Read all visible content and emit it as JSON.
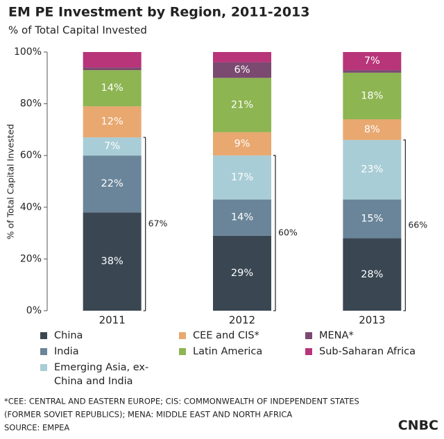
{
  "chart_data": {
    "type": "stacked_bar",
    "title": "EM PE Investment by Region, 2011-2013",
    "subtitle": "% of Total Capital Invested",
    "y_label": "% of Total Capital Invested",
    "categories": [
      "2011",
      "2012",
      "2013"
    ],
    "series": [
      {
        "name": "China",
        "color": "#3a4753",
        "values": [
          38,
          29,
          28
        ],
        "value_labels": [
          "38%",
          "29%",
          "28%"
        ]
      },
      {
        "name": "India",
        "color": "#6a8599",
        "values": [
          22,
          14,
          15
        ],
        "value_labels": [
          "22%",
          "14%",
          "15%"
        ]
      },
      {
        "name": "Emerging Asia, ex-China and India",
        "color": "#a9cdd6",
        "values": [
          7,
          17,
          23
        ],
        "value_labels": [
          "7%",
          "17%",
          "23%"
        ]
      },
      {
        "name": "CEE and CIS*",
        "color": "#e8a870",
        "values": [
          12,
          9,
          8
        ],
        "value_labels": [
          "12%",
          "9%",
          "8%"
        ]
      },
      {
        "name": "Latin America",
        "color": "#8db552",
        "values": [
          14,
          21,
          18
        ],
        "value_labels": [
          "14%",
          "21%",
          "18%"
        ]
      },
      {
        "name": "MENA*",
        "color": "#7a4a70",
        "values": [
          1,
          6,
          1
        ],
        "value_labels": [
          null,
          "6%",
          null
        ]
      },
      {
        "name": "Sub-Saharan Africa",
        "color": "#b8357a",
        "values": [
          6,
          4,
          7
        ],
        "value_labels": [
          null,
          null,
          "7%"
        ]
      }
    ],
    "brackets": [
      {
        "value": 67,
        "label": "67%"
      },
      {
        "value": 60,
        "label": "60%"
      },
      {
        "value": 66,
        "label": "66%"
      }
    ],
    "ylim": [
      0,
      100
    ],
    "yticks": [
      {
        "value": 0,
        "label": "0%"
      },
      {
        "value": 20,
        "label": "20%"
      },
      {
        "value": 40,
        "label": "40%"
      },
      {
        "value": 60,
        "label": "60%"
      },
      {
        "value": 80,
        "label": "80%"
      },
      {
        "value": 100,
        "label": "100%"
      }
    ],
    "footnotes": [
      "*CEE: CENTRAL AND EASTERN EUROPE; CIS: COMMONWEALTH OF INDEPENDENT STATES",
      "(FORMER SOVIET REPUBLICS); MENA: MIDDLE EAST AND NORTH AFRICA",
      "SOURCE: EMPEA"
    ],
    "logo": "CNBC"
  }
}
